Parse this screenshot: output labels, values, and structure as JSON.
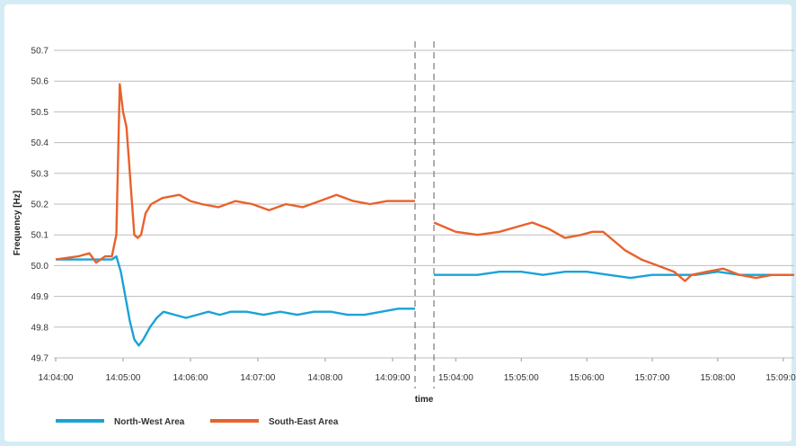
{
  "chart_data": {
    "type": "line",
    "ylabel": "Frequency [Hz]",
    "xlabel": "time",
    "ylim": [
      49.7,
      50.7
    ],
    "yticks": [
      "50.7",
      "50.6",
      "50.5",
      "50.4",
      "50.3",
      "50.2",
      "50.1",
      "50.0",
      "49.9",
      "49.8",
      "49.7"
    ],
    "grid": "horizontal",
    "legend_position": "bottom-left",
    "segments": [
      {
        "xlim": [
          "14:04:00",
          "14:09:20"
        ],
        "xticks": [
          "14:04:00",
          "14:05:00",
          "14:06:00",
          "14:07:00",
          "14:08:00",
          "14:09:00"
        ]
      },
      {
        "xlim": [
          "15:03:40",
          "15:09:10"
        ],
        "xticks": [
          "15:04:00",
          "15:05:00",
          "15:06:00",
          "15:07:00",
          "15:08:00",
          "15:09:00"
        ]
      }
    ],
    "series": [
      {
        "name": "North-West Area",
        "color": "#1aa3d6",
        "segments": [
          [
            [
              "14:04:00",
              50.02
            ],
            [
              "14:04:20",
              50.02
            ],
            [
              "14:04:40",
              50.02
            ],
            [
              "14:04:50",
              50.02
            ],
            [
              "14:04:54",
              50.03
            ],
            [
              "14:04:58",
              49.98
            ],
            [
              "14:05:02",
              49.9
            ],
            [
              "14:05:06",
              49.82
            ],
            [
              "14:05:10",
              49.76
            ],
            [
              "14:05:14",
              49.74
            ],
            [
              "14:05:18",
              49.76
            ],
            [
              "14:05:24",
              49.8
            ],
            [
              "14:05:30",
              49.83
            ],
            [
              "14:05:36",
              49.85
            ],
            [
              "14:05:46",
              49.84
            ],
            [
              "14:05:56",
              49.83
            ],
            [
              "14:06:06",
              49.84
            ],
            [
              "14:06:16",
              49.85
            ],
            [
              "14:06:26",
              49.84
            ],
            [
              "14:06:36",
              49.85
            ],
            [
              "14:06:50",
              49.85
            ],
            [
              "14:07:05",
              49.84
            ],
            [
              "14:07:20",
              49.85
            ],
            [
              "14:07:35",
              49.84
            ],
            [
              "14:07:50",
              49.85
            ],
            [
              "14:08:05",
              49.85
            ],
            [
              "14:08:20",
              49.84
            ],
            [
              "14:08:35",
              49.84
            ],
            [
              "14:08:50",
              49.85
            ],
            [
              "14:09:05",
              49.86
            ],
            [
              "14:09:20",
              49.86
            ]
          ],
          [
            [
              "15:03:40",
              49.97
            ],
            [
              "15:04:00",
              49.97
            ],
            [
              "15:04:20",
              49.97
            ],
            [
              "15:04:40",
              49.98
            ],
            [
              "15:05:00",
              49.98
            ],
            [
              "15:05:20",
              49.97
            ],
            [
              "15:05:40",
              49.98
            ],
            [
              "15:06:00",
              49.98
            ],
            [
              "15:06:20",
              49.97
            ],
            [
              "15:06:40",
              49.96
            ],
            [
              "15:07:00",
              49.97
            ],
            [
              "15:07:20",
              49.97
            ],
            [
              "15:07:40",
              49.97
            ],
            [
              "15:08:00",
              49.98
            ],
            [
              "15:08:20",
              49.97
            ],
            [
              "15:08:40",
              49.97
            ],
            [
              "15:09:00",
              49.97
            ],
            [
              "15:09:10",
              49.97
            ]
          ]
        ]
      },
      {
        "name": "South-East Area",
        "color": "#e8622c",
        "segments": [
          [
            [
              "14:04:00",
              50.02
            ],
            [
              "14:04:20",
              50.03
            ],
            [
              "14:04:30",
              50.04
            ],
            [
              "14:04:36",
              50.01
            ],
            [
              "14:04:44",
              50.03
            ],
            [
              "14:04:50",
              50.03
            ],
            [
              "14:04:54",
              50.1
            ],
            [
              "14:04:57",
              50.59
            ],
            [
              "14:05:00",
              50.5
            ],
            [
              "14:05:03",
              50.45
            ],
            [
              "14:05:05",
              50.35
            ],
            [
              "14:05:08",
              50.2
            ],
            [
              "14:05:10",
              50.1
            ],
            [
              "14:05:13",
              50.09
            ],
            [
              "14:05:16",
              50.1
            ],
            [
              "14:05:20",
              50.17
            ],
            [
              "14:05:25",
              50.2
            ],
            [
              "14:05:35",
              50.22
            ],
            [
              "14:05:50",
              50.23
            ],
            [
              "14:06:00",
              50.21
            ],
            [
              "14:06:10",
              50.2
            ],
            [
              "14:06:25",
              50.19
            ],
            [
              "14:06:40",
              50.21
            ],
            [
              "14:06:55",
              50.2
            ],
            [
              "14:07:10",
              50.18
            ],
            [
              "14:07:25",
              50.2
            ],
            [
              "14:07:40",
              50.19
            ],
            [
              "14:07:55",
              50.21
            ],
            [
              "14:08:10",
              50.23
            ],
            [
              "14:08:25",
              50.21
            ],
            [
              "14:08:40",
              50.2
            ],
            [
              "14:08:55",
              50.21
            ],
            [
              "14:09:10",
              50.21
            ],
            [
              "14:09:20",
              50.21
            ]
          ],
          [
            [
              "15:03:40",
              50.14
            ],
            [
              "15:04:00",
              50.11
            ],
            [
              "15:04:20",
              50.1
            ],
            [
              "15:04:40",
              50.11
            ],
            [
              "15:05:00",
              50.13
            ],
            [
              "15:05:10",
              50.14
            ],
            [
              "15:05:25",
              50.12
            ],
            [
              "15:05:40",
              50.09
            ],
            [
              "15:05:55",
              50.1
            ],
            [
              "15:06:05",
              50.11
            ],
            [
              "15:06:15",
              50.11
            ],
            [
              "15:06:25",
              50.08
            ],
            [
              "15:06:35",
              50.05
            ],
            [
              "15:06:50",
              50.02
            ],
            [
              "15:07:05",
              50.0
            ],
            [
              "15:07:20",
              49.98
            ],
            [
              "15:07:30",
              49.95
            ],
            [
              "15:07:36",
              49.97
            ],
            [
              "15:07:50",
              49.98
            ],
            [
              "15:08:05",
              49.99
            ],
            [
              "15:08:20",
              49.97
            ],
            [
              "15:08:35",
              49.96
            ],
            [
              "15:08:50",
              49.97
            ],
            [
              "15:09:10",
              49.97
            ]
          ]
        ]
      }
    ]
  }
}
